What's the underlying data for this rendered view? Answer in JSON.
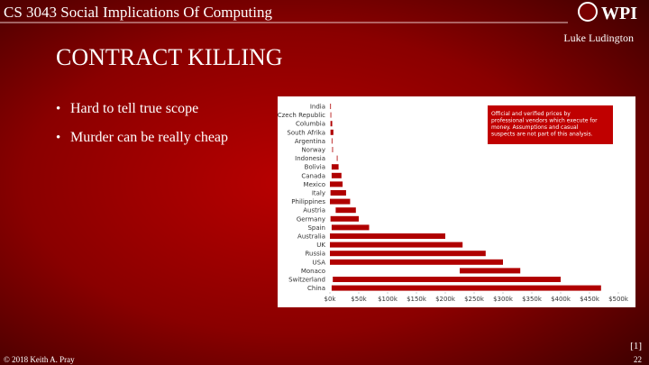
{
  "header": {
    "course": "CS 3043 Social Implications Of Computing",
    "logo": "WPI",
    "author": "Luke Ludington"
  },
  "title": "CONTRACT KILLING",
  "bullets": [
    "Hard to tell true scope",
    "Murder can be really cheap"
  ],
  "footer": {
    "copyright": "© 2018 Keith A. Pray",
    "page": "22",
    "citation": "[1]"
  },
  "chart_data": {
    "type": "range-bar",
    "color": "#b00000",
    "annotation_lines": [
      "Official and verified prices by",
      "professional vendors which execute for",
      "money. Assumptions and casual",
      "suspects are not part of this analysis."
    ],
    "categories": [
      "India",
      "Czech Republic",
      "Columbia",
      "South Afrika",
      "Argentina",
      "Norway",
      "Indonesia",
      "Bolivia",
      "Canada",
      "Mexico",
      "Italy",
      "Philippines",
      "Austria",
      "Germany",
      "Spain",
      "Australia",
      "UK",
      "Russia",
      "USA",
      "Monaco",
      "Switzerland",
      "China"
    ],
    "low": [
      0.5,
      1,
      1,
      1,
      3,
      4,
      12,
      3,
      3,
      0,
      1,
      0,
      10,
      1,
      3,
      0,
      0,
      0,
      0,
      225,
      5,
      3
    ],
    "high": [
      1.5,
      2,
      4,
      6,
      4,
      5,
      13,
      15,
      20,
      22,
      28,
      35,
      45,
      50,
      68,
      200,
      230,
      270,
      300,
      330,
      400,
      470
    ],
    "xlim": [
      0,
      500
    ],
    "xticks": [
      {
        "value": 0,
        "label": "$0k"
      },
      {
        "value": 50,
        "label": "$50k"
      },
      {
        "value": 100,
        "label": "$100k"
      },
      {
        "value": 150,
        "label": "$150k"
      },
      {
        "value": 200,
        "label": "$200k"
      },
      {
        "value": 250,
        "label": "$250k"
      },
      {
        "value": 300,
        "label": "$300k"
      },
      {
        "value": 350,
        "label": "$350k"
      },
      {
        "value": 400,
        "label": "$400k"
      },
      {
        "value": 450,
        "label": "$450k"
      },
      {
        "value": 500,
        "label": "$500k"
      }
    ]
  }
}
